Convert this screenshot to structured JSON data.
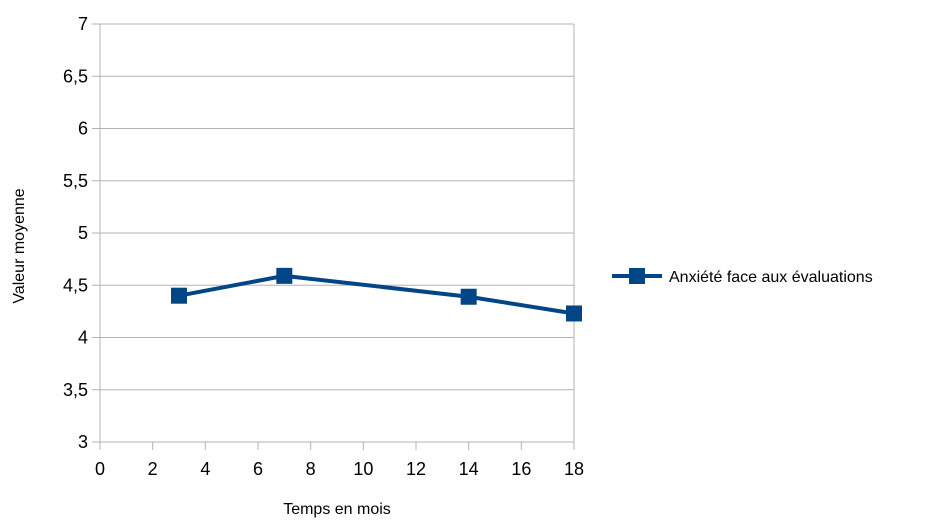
{
  "chart_data": {
    "type": "line",
    "title": "",
    "xlabel": "Temps en mois",
    "ylabel": "Valeur moyenne",
    "xlim": [
      0,
      18
    ],
    "ylim": [
      3,
      7
    ],
    "x_ticks": [
      0,
      2,
      4,
      6,
      8,
      10,
      12,
      14,
      16,
      18
    ],
    "y_ticks": [
      3,
      3.5,
      4,
      4.5,
      5,
      5.5,
      6,
      6.5,
      7
    ],
    "y_tick_labels": [
      "3",
      "3,5",
      "4",
      "4,5",
      "5",
      "5,5",
      "6",
      "6,5",
      "7"
    ],
    "grid": "horizontal",
    "legend_position": "right",
    "series": [
      {
        "name": "Anxiété face aux évaluations",
        "color": "#004586",
        "marker": "square",
        "points": [
          {
            "x": 3,
            "y": 4.4
          },
          {
            "x": 7,
            "y": 4.59
          },
          {
            "x": 14,
            "y": 4.39
          },
          {
            "x": 18,
            "y": 4.23
          }
        ]
      }
    ]
  }
}
